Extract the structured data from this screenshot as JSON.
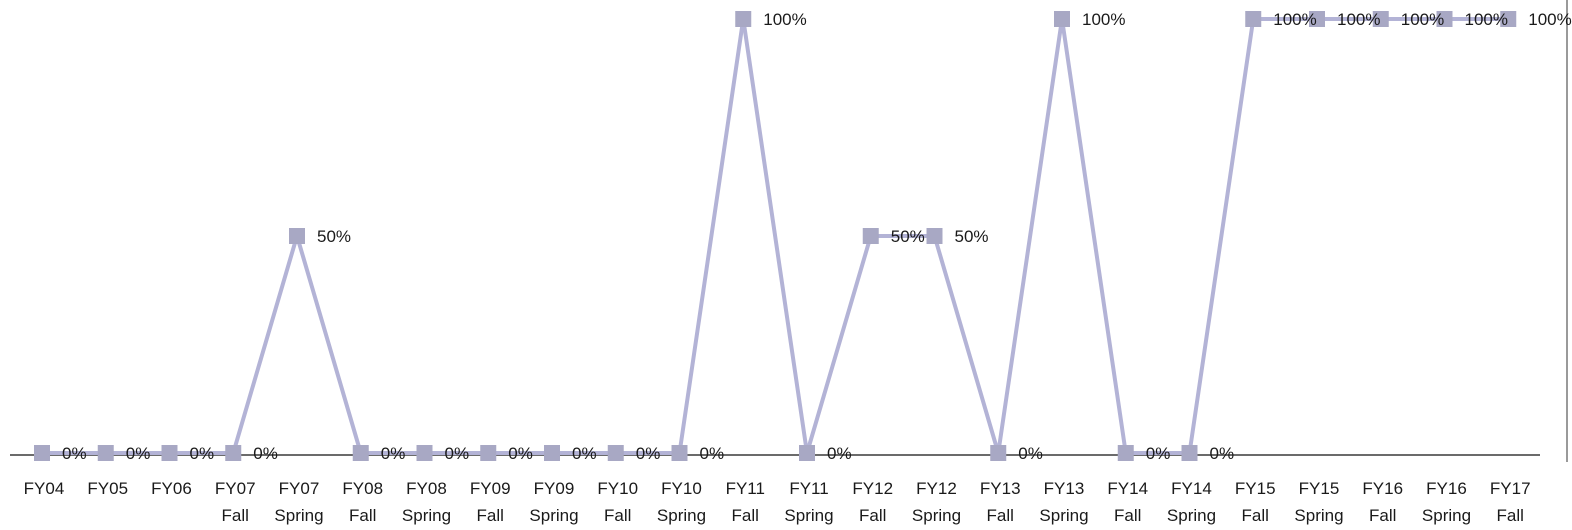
{
  "chart_data": {
    "type": "line",
    "categories": [
      [
        "FY04",
        ""
      ],
      [
        "FY05",
        ""
      ],
      [
        "FY06",
        ""
      ],
      [
        "FY07",
        "Fall"
      ],
      [
        "FY07",
        "Spring"
      ],
      [
        "FY08",
        "Fall"
      ],
      [
        "FY08",
        "Spring"
      ],
      [
        "FY09",
        "Fall"
      ],
      [
        "FY09",
        "Spring"
      ],
      [
        "FY10",
        "Fall"
      ],
      [
        "FY10",
        "Spring"
      ],
      [
        "FY11",
        "Fall"
      ],
      [
        "FY11",
        "Spring"
      ],
      [
        "FY12",
        "Fall"
      ],
      [
        "FY12",
        "Spring"
      ],
      [
        "FY13",
        "Fall"
      ],
      [
        "FY13",
        "Spring"
      ],
      [
        "FY14",
        "Fall"
      ],
      [
        "FY14",
        "Spring"
      ],
      [
        "FY15",
        "Fall"
      ],
      [
        "FY15",
        "Spring"
      ],
      [
        "FY16",
        "Fall"
      ],
      [
        "FY16",
        "Spring"
      ],
      [
        "FY17",
        "Fall"
      ]
    ],
    "series": [
      {
        "values": [
          0,
          0,
          0,
          0,
          50,
          0,
          0,
          0,
          0,
          0,
          0,
          100,
          0,
          50,
          50,
          0,
          100,
          0,
          0,
          100,
          100,
          100,
          100,
          100
        ],
        "data_labels": [
          "0%",
          "0%",
          "0%",
          "0%",
          "50%",
          "0%",
          "0%",
          "0%",
          "0%",
          "0%",
          "0%",
          "100%",
          "0%",
          "50%",
          "50%",
          "0%",
          "100%",
          "0%",
          "0%",
          "100%",
          "100%",
          "100%",
          "100%",
          "100%"
        ],
        "line_color": "#b3b3d6",
        "marker_color": "#a8a8c4"
      }
    ],
    "title": "",
    "xlabel": "",
    "ylabel": "",
    "ylim": [
      0,
      100
    ],
    "grid": false,
    "legend": "none",
    "axis_color": "#6b6b6b"
  }
}
